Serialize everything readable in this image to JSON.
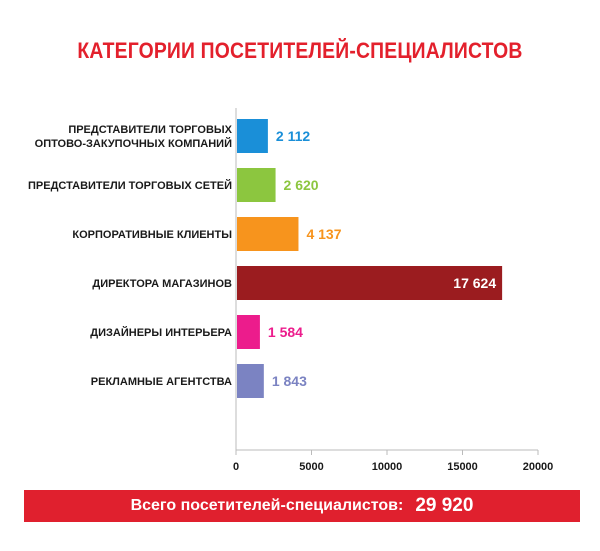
{
  "title": "КАТЕГОРИИ ПОСЕТИТЕЛЕЙ-СПЕЦИАЛИСТОВ",
  "total": {
    "label": "Всего посетителей-специалистов:",
    "value": "29 920"
  },
  "chart_data": {
    "type": "bar",
    "orientation": "horizontal",
    "title": "КАТЕГОРИИ ПОСЕТИТЕЛЕЙ-СПЕЦИАЛИСТОВ",
    "categories": [
      [
        "ПРЕДСТАВИТЕЛИ ТОРГОВЫХ",
        "ОПТОВО-ЗАКУПОЧНЫХ КОМПАНИЙ"
      ],
      [
        "ПРЕДСТАВИТЕЛИ ТОРГОВЫХ СЕТЕЙ"
      ],
      [
        "КОРПОРАТИВНЫЕ КЛИЕНТЫ"
      ],
      [
        "ДИРЕКТОРА МАГАЗИНОВ"
      ],
      [
        "ДИЗАЙНЕРЫ ИНТЕРЬЕРА"
      ],
      [
        "РЕКЛАМНЫЕ АГЕНТСТВА"
      ]
    ],
    "values": [
      2112,
      2620,
      4137,
      17624,
      1584,
      1843
    ],
    "value_labels": [
      "2 112",
      "2 620",
      "4 137",
      "17 624",
      "1 584",
      "1 843"
    ],
    "colors": [
      "#1a8fd8",
      "#8cc63f",
      "#f7941d",
      "#9b1c1f",
      "#ec1c8c",
      "#7b83c2"
    ],
    "label_inside": [
      false,
      false,
      false,
      true,
      false,
      false
    ],
    "xlim": [
      0,
      20000
    ],
    "xticks": [
      0,
      5000,
      10000,
      15000,
      20000
    ],
    "xtick_labels": [
      "0",
      "5000",
      "10000",
      "15000",
      "20000"
    ],
    "xlabel": "",
    "ylabel": "",
    "grid": false,
    "legend": "none"
  }
}
